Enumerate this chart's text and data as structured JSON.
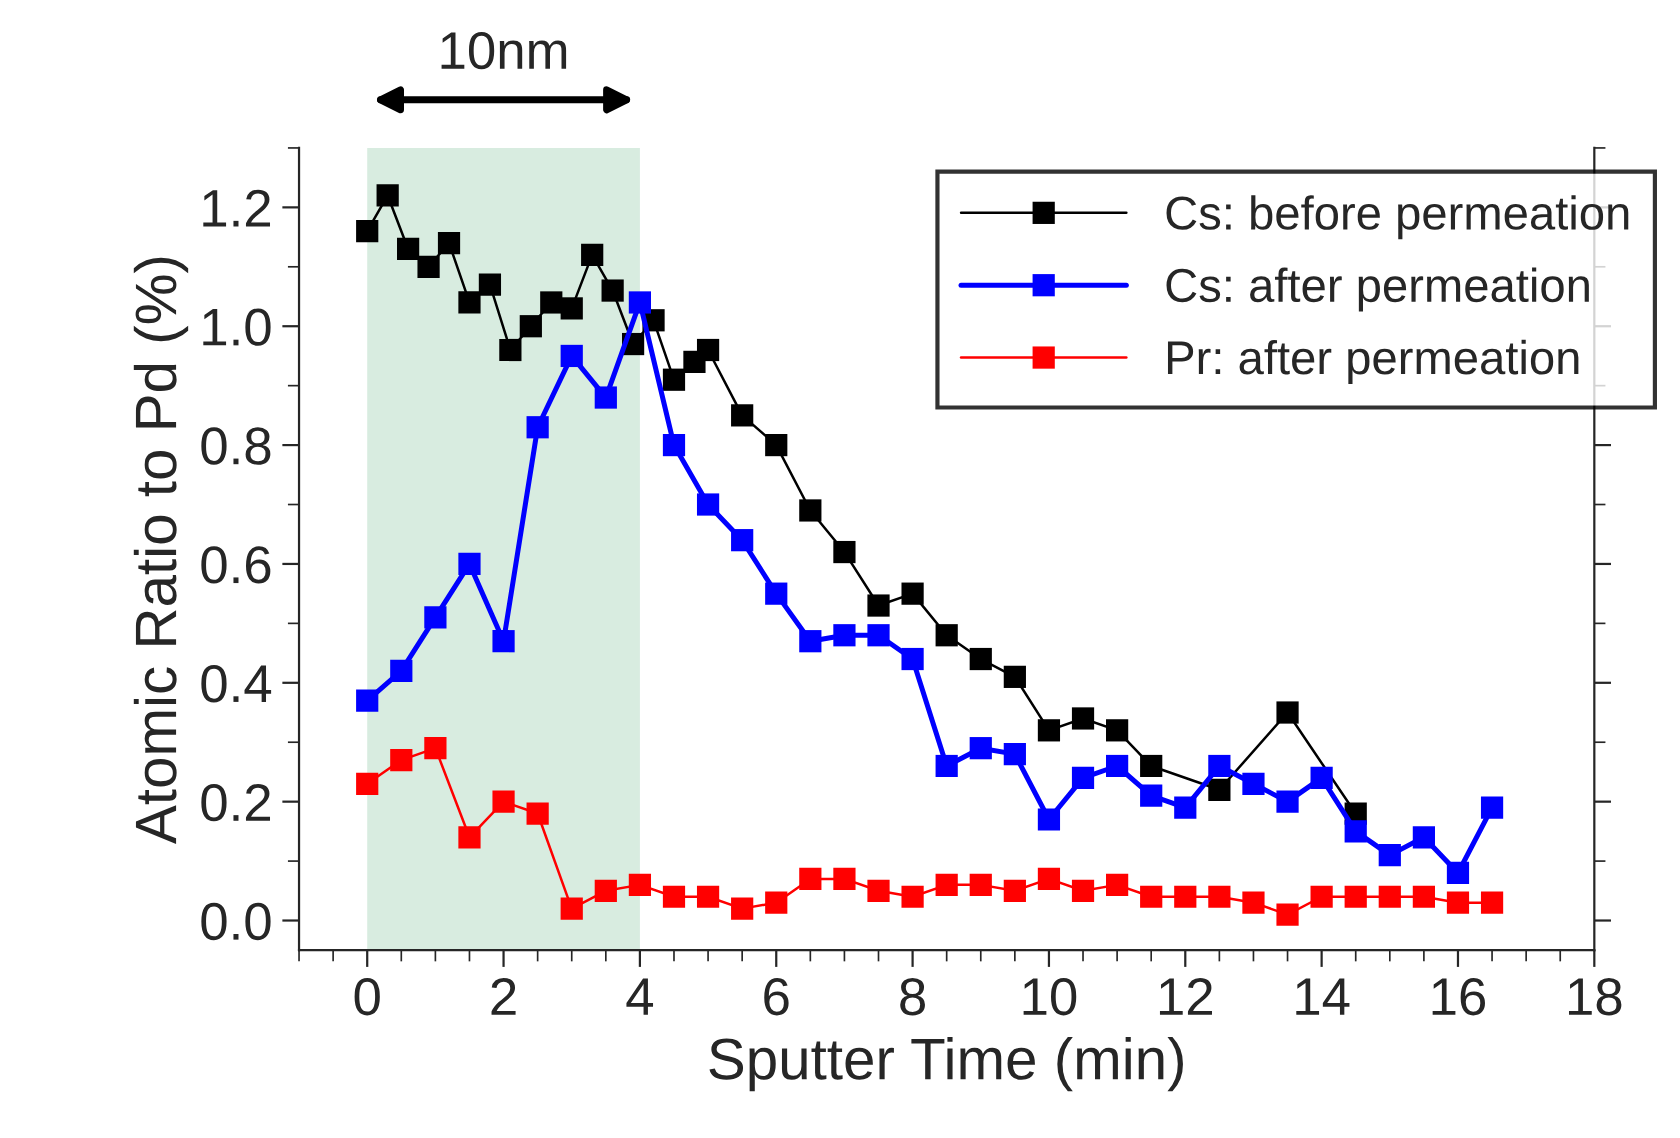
{
  "chart_data": {
    "type": "line",
    "xlabel": "Sputter Time (min)",
    "ylabel": "Atomic Ratio to Pd (%)",
    "xlim": [
      -1,
      18
    ],
    "xticks": [
      0,
      2,
      4,
      6,
      8,
      10,
      12,
      14,
      16,
      18
    ],
    "ylim": [
      -0.05,
      1.3
    ],
    "yticks": [
      {
        "value": 0.0,
        "label": "0.0"
      },
      {
        "value": 0.2,
        "label": "0.2"
      },
      {
        "value": 0.4,
        "label": "0.4"
      },
      {
        "value": 0.6,
        "label": "0.6"
      },
      {
        "value": 0.8,
        "label": "0.8"
      },
      {
        "value": 1.0,
        "label": "1.0"
      },
      {
        "value": 1.2,
        "label": "1.2"
      }
    ],
    "marker": "square",
    "line_style": "solid",
    "grid": false,
    "legend": "top right",
    "bands": [
      {
        "axis": "x",
        "from": 0,
        "to": 4,
        "label": "10nm",
        "color": "#d8ece0"
      }
    ],
    "series": [
      {
        "name": "Cs: before permeation",
        "color": "#000000",
        "x": [
          0,
          0.3,
          0.6,
          0.9,
          1.2,
          1.5,
          1.8,
          2.1,
          2.4,
          2.7,
          3.0,
          3.3,
          3.6,
          3.9,
          4.2,
          4.5,
          4.8,
          5.0,
          5.5,
          6.0,
          6.5,
          7.0,
          7.5,
          8.0,
          8.5,
          9.0,
          9.5,
          10.0,
          10.5,
          11.0,
          11.5,
          12.5,
          13.5,
          14.5
        ],
        "values": [
          1.16,
          1.22,
          1.13,
          1.1,
          1.14,
          1.04,
          1.07,
          0.96,
          1.0,
          1.04,
          1.03,
          1.12,
          1.06,
          0.97,
          1.01,
          0.91,
          0.94,
          0.96,
          0.85,
          0.8,
          0.69,
          0.62,
          0.53,
          0.55,
          0.48,
          0.44,
          0.41,
          0.32,
          0.34,
          0.32,
          0.26,
          0.22,
          0.35,
          0.18
        ]
      },
      {
        "name": "Cs: after permeation",
        "color": "#0000ff",
        "x": [
          0,
          0.5,
          1.0,
          1.5,
          2.0,
          2.5,
          3.0,
          3.5,
          4.0,
          4.5,
          5.0,
          5.5,
          6.0,
          6.5,
          7.0,
          7.5,
          8.0,
          8.5,
          9.0,
          9.5,
          10.0,
          10.5,
          11.0,
          11.5,
          12.0,
          12.5,
          13.0,
          13.5,
          14.0,
          14.5,
          15.0,
          15.5,
          16.0,
          16.5
        ],
        "values": [
          0.37,
          0.42,
          0.51,
          0.6,
          0.47,
          0.83,
          0.95,
          0.88,
          1.04,
          0.8,
          0.7,
          0.64,
          0.55,
          0.47,
          0.48,
          0.48,
          0.44,
          0.26,
          0.29,
          0.28,
          0.17,
          0.24,
          0.26,
          0.21,
          0.19,
          0.26,
          0.23,
          0.2,
          0.24,
          0.15,
          0.11,
          0.14,
          0.08,
          0.19
        ]
      },
      {
        "name": "Pr: after permeation",
        "color": "#ff0000",
        "x": [
          0,
          0.5,
          1.0,
          1.5,
          2.0,
          2.5,
          3.0,
          3.5,
          4.0,
          4.5,
          5.0,
          5.5,
          6.0,
          6.5,
          7.0,
          7.5,
          8.0,
          8.5,
          9.0,
          9.5,
          10.0,
          10.5,
          11.0,
          11.5,
          12.0,
          12.5,
          13.0,
          13.5,
          14.0,
          14.5,
          15.0,
          15.5,
          16.0,
          16.5
        ],
        "values": [
          0.23,
          0.27,
          0.29,
          0.14,
          0.2,
          0.18,
          0.02,
          0.05,
          0.06,
          0.04,
          0.04,
          0.02,
          0.03,
          0.07,
          0.07,
          0.05,
          0.04,
          0.06,
          0.06,
          0.05,
          0.07,
          0.05,
          0.06,
          0.04,
          0.04,
          0.04,
          0.03,
          0.01,
          0.04,
          0.04,
          0.04,
          0.04,
          0.03,
          0.03
        ]
      }
    ]
  }
}
